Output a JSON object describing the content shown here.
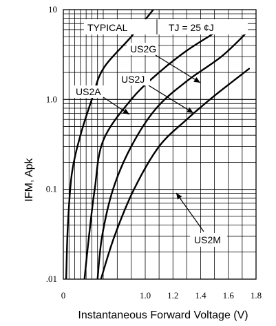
{
  "chart_data": {
    "type": "line",
    "title": "",
    "xlabel": "Instantaneous Forward Voltage (V)",
    "ylabel": "IFM, Apk",
    "xlim": [
      0,
      1.8
    ],
    "ylim": [
      0.01,
      10
    ],
    "y_scale": "log",
    "grid": true,
    "x_ticks": [
      {
        "value": 0,
        "label": "0"
      },
      {
        "value": 1.0,
        "label": "1.0"
      },
      {
        "value": 1.2,
        "label": "1.2"
      },
      {
        "value": 1.4,
        "label": "1.4"
      },
      {
        "value": 1.6,
        "label": "1.6"
      },
      {
        "value": 1.8,
        "label": "1.8"
      }
    ],
    "y_ticks": [
      {
        "value": 0.01,
        "label": ".01"
      },
      {
        "value": 0.1,
        "label": "0.1"
      },
      {
        "value": 1.0,
        "label": "1.0"
      },
      {
        "value": 10,
        "label": "10"
      }
    ],
    "annotations": {
      "typical": "TYPICAL",
      "tj": "TJ = 25 ¢J"
    },
    "series": [
      {
        "name": "US2A",
        "points": [
          [
            0.05,
            0.01
          ],
          [
            0.08,
            0.04
          ],
          [
            0.15,
            0.15
          ],
          [
            0.3,
            0.4
          ],
          [
            0.5,
            1.0
          ],
          [
            0.7,
            2.2
          ],
          [
            0.9,
            5.0
          ],
          [
            1.08,
            11
          ]
        ]
      },
      {
        "name": "US2G",
        "points": [
          [
            0.37,
            0.01
          ],
          [
            0.45,
            0.03
          ],
          [
            0.55,
            0.1
          ],
          [
            0.7,
            0.35
          ],
          [
            0.9,
            1.0
          ],
          [
            1.1,
            2.0
          ],
          [
            1.3,
            3.5
          ],
          [
            1.5,
            5.5
          ]
        ]
      },
      {
        "name": "US2J",
        "points": [
          [
            0.6,
            0.01
          ],
          [
            0.68,
            0.03
          ],
          [
            0.77,
            0.1
          ],
          [
            0.9,
            0.3
          ],
          [
            1.08,
            0.8
          ],
          [
            1.3,
            1.6
          ],
          [
            1.55,
            3.0
          ],
          [
            1.73,
            5.5
          ]
        ]
      },
      {
        "name": "US2M",
        "points": [
          [
            0.66,
            0.01
          ],
          [
            0.78,
            0.03
          ],
          [
            0.92,
            0.1
          ],
          [
            1.1,
            0.3
          ],
          [
            1.3,
            0.6
          ],
          [
            1.5,
            1.1
          ],
          [
            1.75,
            2.2
          ]
        ]
      }
    ]
  }
}
